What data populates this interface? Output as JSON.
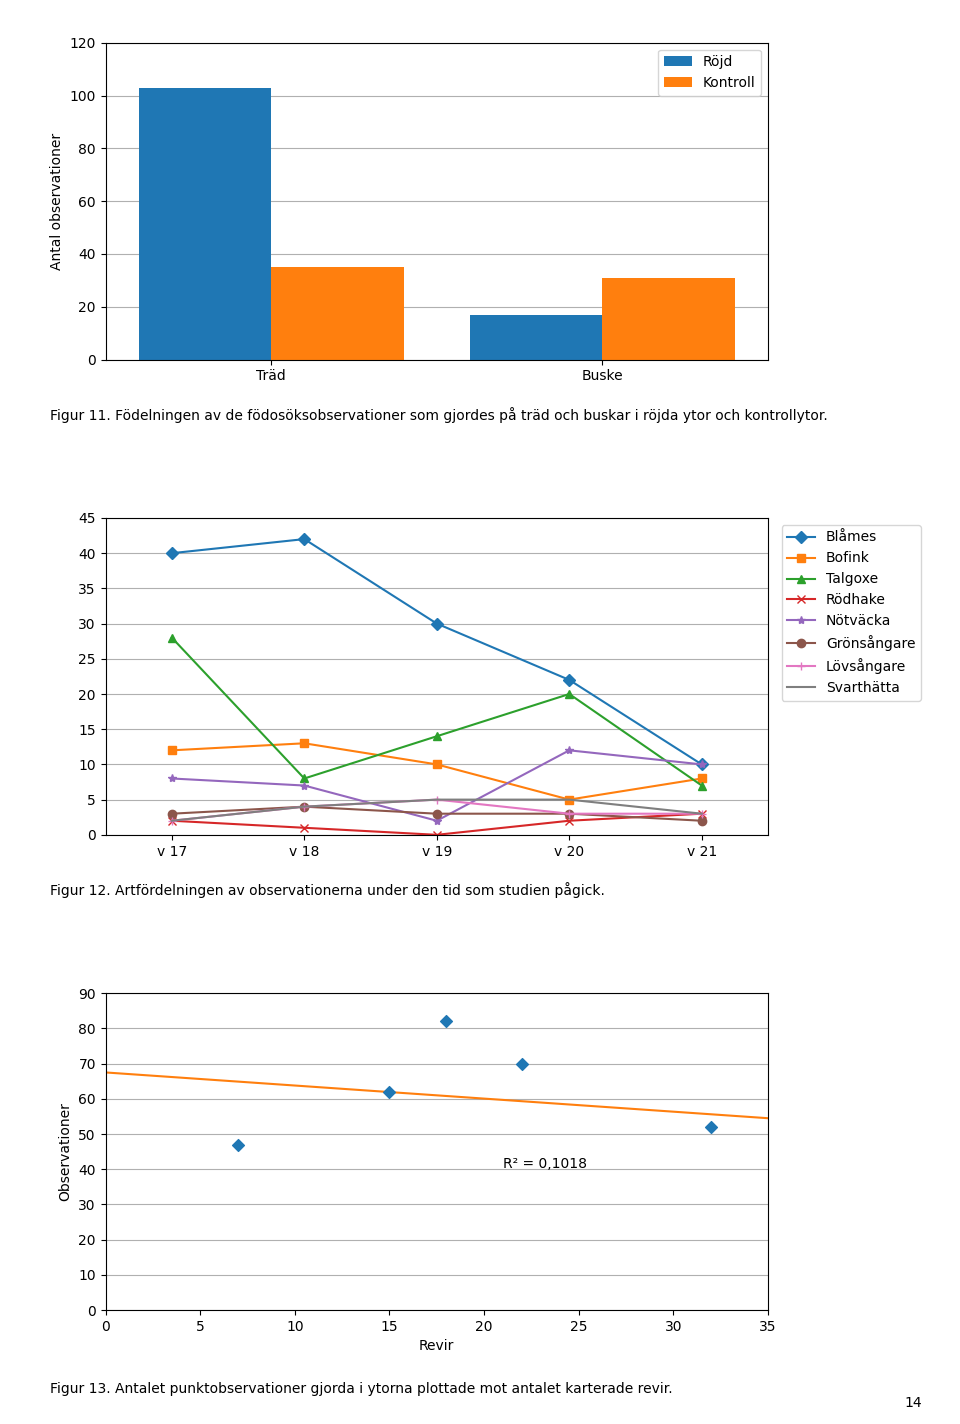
{
  "chart_data": [
    {
      "type": "bar",
      "categories": [
        "Träd",
        "Buske"
      ],
      "series": [
        {
          "name": "Röjd",
          "values": [
            103,
            17
          ]
        },
        {
          "name": "Kontroll",
          "values": [
            35,
            31
          ]
        }
      ],
      "ylabel": "Antal observationer",
      "ylim": [
        0,
        120
      ],
      "yticks": [
        0,
        20,
        40,
        60,
        80,
        100,
        120
      ],
      "grid": "y",
      "legend": "upper right",
      "caption": "Figur 11. Födelningen av de födosöksobservationer som gjordes på träd och buskar i röjda ytor och kontrollytor."
    },
    {
      "type": "line",
      "categories": [
        "v 17",
        "v 18",
        "v 19",
        "v 20",
        "v 21"
      ],
      "series": [
        {
          "name": "Blåmes",
          "values": [
            40,
            42,
            30,
            22,
            10
          ],
          "marker": "diamond"
        },
        {
          "name": "Bofink",
          "values": [
            12,
            13,
            10,
            5,
            8
          ],
          "marker": "square"
        },
        {
          "name": "Talgoxe",
          "values": [
            28,
            8,
            14,
            20,
            7
          ],
          "marker": "triangle"
        },
        {
          "name": "Rödhake",
          "values": [
            2,
            1,
            0,
            2,
            3
          ],
          "marker": "x"
        },
        {
          "name": "Nötväcka",
          "values": [
            8,
            7,
            2,
            12,
            10
          ],
          "marker": "star"
        },
        {
          "name": "Grönsångare",
          "values": [
            3,
            4,
            3,
            3,
            2
          ],
          "marker": "circle"
        },
        {
          "name": "Lövsångare",
          "values": [
            2,
            4,
            5,
            3,
            3
          ],
          "marker": "plus"
        },
        {
          "name": "Svarthätta",
          "values": [
            2,
            4,
            5,
            5,
            3
          ]
        }
      ],
      "ylim": [
        0,
        45
      ],
      "yticks": [
        0,
        5,
        10,
        15,
        20,
        25,
        30,
        35,
        40,
        45
      ],
      "grid": "y",
      "legend": "upper right",
      "caption": "Figur 12. Artfördelningen av observationerna under den tid som studien pågick."
    },
    {
      "type": "scatter",
      "series": [
        {
          "type": "scatter",
          "x": [
            7,
            15,
            18,
            22,
            32
          ],
          "values": [
            47,
            62,
            82,
            70,
            52
          ],
          "marker": "diamond"
        },
        {
          "type": "line",
          "x": [
            0,
            35
          ],
          "values": [
            67.5,
            54.5
          ]
        }
      ],
      "xlabel": "Revir",
      "ylabel": "Observationer",
      "ylim": [
        0,
        90
      ],
      "yticks": [
        0,
        10,
        20,
        30,
        40,
        50,
        60,
        70,
        80,
        90
      ],
      "xlim": [
        0,
        35
      ],
      "xticks": [
        0,
        5,
        10,
        15,
        20,
        25,
        30,
        35
      ],
      "grid": "y",
      "annotations": [
        "R² = 0,1018"
      ],
      "caption": "Figur 13. Antalet punktobservationer gjorda i ytorna plottade mot antalet karterade revir."
    }
  ],
  "annotations": [
    "14"
  ]
}
